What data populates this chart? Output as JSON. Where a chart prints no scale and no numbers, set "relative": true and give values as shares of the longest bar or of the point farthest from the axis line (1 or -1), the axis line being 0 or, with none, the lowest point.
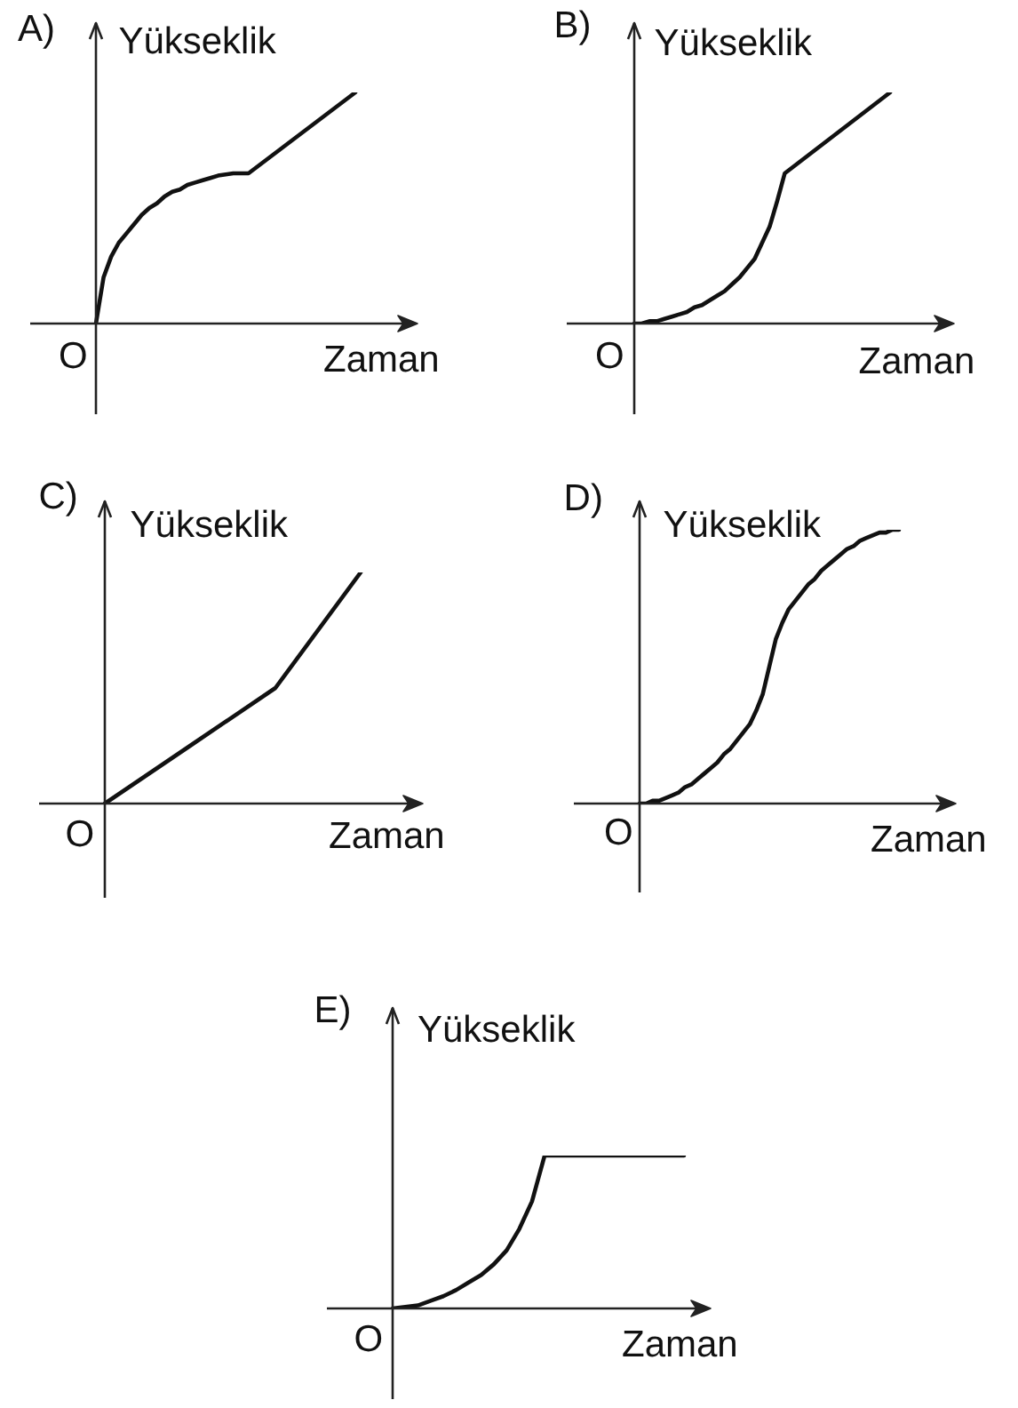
{
  "chart_data": [
    {
      "type": "line",
      "title": "A)",
      "ylabel": "Yükseklik",
      "xlabel": "Zaman",
      "annotations": [
        "O"
      ],
      "relative": true,
      "color": "#111111",
      "categories": [
        null,
        null,
        null,
        null,
        null,
        null,
        null,
        null,
        null,
        null,
        null,
        null,
        null,
        null,
        null,
        null,
        null,
        null,
        null,
        null,
        null,
        null,
        null,
        null,
        null,
        null,
        null,
        null,
        null,
        null,
        null,
        null,
        null,
        null,
        null
      ],
      "values": [
        0,
        0.2,
        0.29,
        0.35,
        0.39,
        0.43,
        0.47,
        0.5,
        0.52,
        0.55,
        0.57,
        0.58,
        0.6,
        0.61,
        0.62,
        0.63,
        0.64,
        0.645,
        0.65,
        0.65,
        0.65,
        0.675,
        0.7,
        0.725,
        0.75,
        0.775,
        0.8,
        0.825,
        0.85,
        0.875,
        0.9,
        0.925,
        0.95,
        0.975,
        1
      ]
    },
    {
      "type": "line",
      "title": "B)",
      "ylabel": "Yükseklik",
      "xlabel": "Zaman",
      "annotations": [
        "O"
      ],
      "relative": true,
      "color": "#111111",
      "categories": [
        null,
        null,
        null,
        null,
        null,
        null,
        null,
        null,
        null,
        null,
        null,
        null,
        null,
        null,
        null,
        null,
        null,
        null,
        null,
        null,
        null,
        null,
        null,
        null,
        null,
        null,
        null,
        null,
        null,
        null,
        null,
        null,
        null,
        null,
        null
      ],
      "values": [
        0,
        0,
        0.01,
        0.01,
        0.02,
        0.03,
        0.04,
        0.05,
        0.07,
        0.08,
        0.1,
        0.12,
        0.14,
        0.17,
        0.2,
        0.24,
        0.28,
        0.35,
        0.42,
        0.53,
        0.65,
        0.675,
        0.7,
        0.725,
        0.75,
        0.775,
        0.8,
        0.825,
        0.85,
        0.875,
        0.9,
        0.925,
        0.95,
        0.975,
        1
      ]
    },
    {
      "type": "line",
      "title": "C)",
      "ylabel": "Yükseklik",
      "xlabel": "Zaman",
      "annotations": [
        "O"
      ],
      "relative": true,
      "color": "#111111",
      "categories": [
        null,
        null,
        null,
        null
      ],
      "values": [
        0,
        0.25,
        0.5,
        1
      ]
    },
    {
      "type": "line",
      "title": "D)",
      "ylabel": "Yükseklik",
      "xlabel": "Zaman",
      "annotations": [
        "O"
      ],
      "relative": true,
      "color": "#111111",
      "categories": [
        null,
        null,
        null,
        null,
        null,
        null,
        null,
        null,
        null,
        null,
        null,
        null,
        null,
        null,
        null,
        null,
        null,
        null,
        null,
        null,
        null,
        null,
        null,
        null,
        null,
        null,
        null,
        null,
        null,
        null,
        null,
        null,
        null,
        null,
        null,
        null,
        null,
        null,
        null,
        null,
        null
      ],
      "values": [
        0,
        0,
        0.01,
        0.01,
        0.02,
        0.03,
        0.04,
        0.06,
        0.07,
        0.09,
        0.11,
        0.13,
        0.15,
        0.18,
        0.2,
        0.23,
        0.26,
        0.29,
        0.34,
        0.4,
        0.5,
        0.6,
        0.66,
        0.71,
        0.74,
        0.77,
        0.8,
        0.82,
        0.85,
        0.87,
        0.89,
        0.91,
        0.93,
        0.94,
        0.96,
        0.97,
        0.98,
        0.99,
        0.99,
        1,
        1
      ]
    },
    {
      "type": "line",
      "title": "E)",
      "ylabel": "Yükseklik",
      "xlabel": "Zaman",
      "annotations": [
        "O"
      ],
      "relative": true,
      "color": "#111111",
      "categories": [
        null,
        null,
        null,
        null,
        null,
        null,
        null,
        null,
        null,
        null,
        null,
        null,
        null,
        null,
        null,
        null,
        null,
        null,
        null,
        null,
        null,
        null,
        null,
        null
      ],
      "values": [
        0,
        0.01,
        0.02,
        0.05,
        0.08,
        0.12,
        0.17,
        0.22,
        0.29,
        0.38,
        0.52,
        0.7,
        1,
        1,
        1,
        1,
        1,
        1,
        1,
        1,
        1,
        1,
        1,
        1
      ]
    }
  ]
}
